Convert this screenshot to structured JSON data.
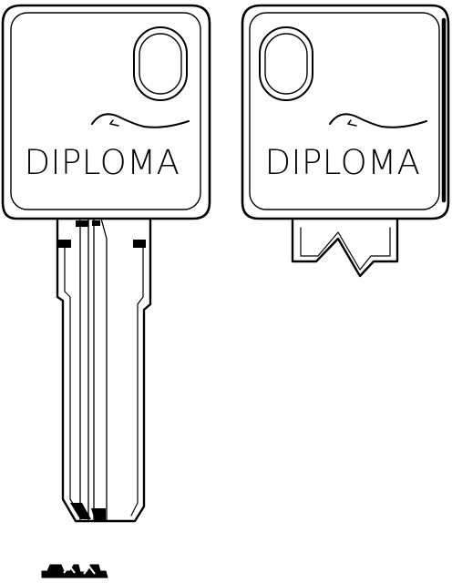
{
  "keys": [
    {
      "side": "front",
      "brand": "DIPLOMA"
    },
    {
      "side": "back",
      "brand": "DIPLOMA"
    }
  ],
  "colors": {
    "ink": "#000000",
    "background": "#ffffff"
  },
  "icons": {
    "logo_swoosh": "swoosh-logo-icon",
    "profile": "key-profile-icon"
  }
}
